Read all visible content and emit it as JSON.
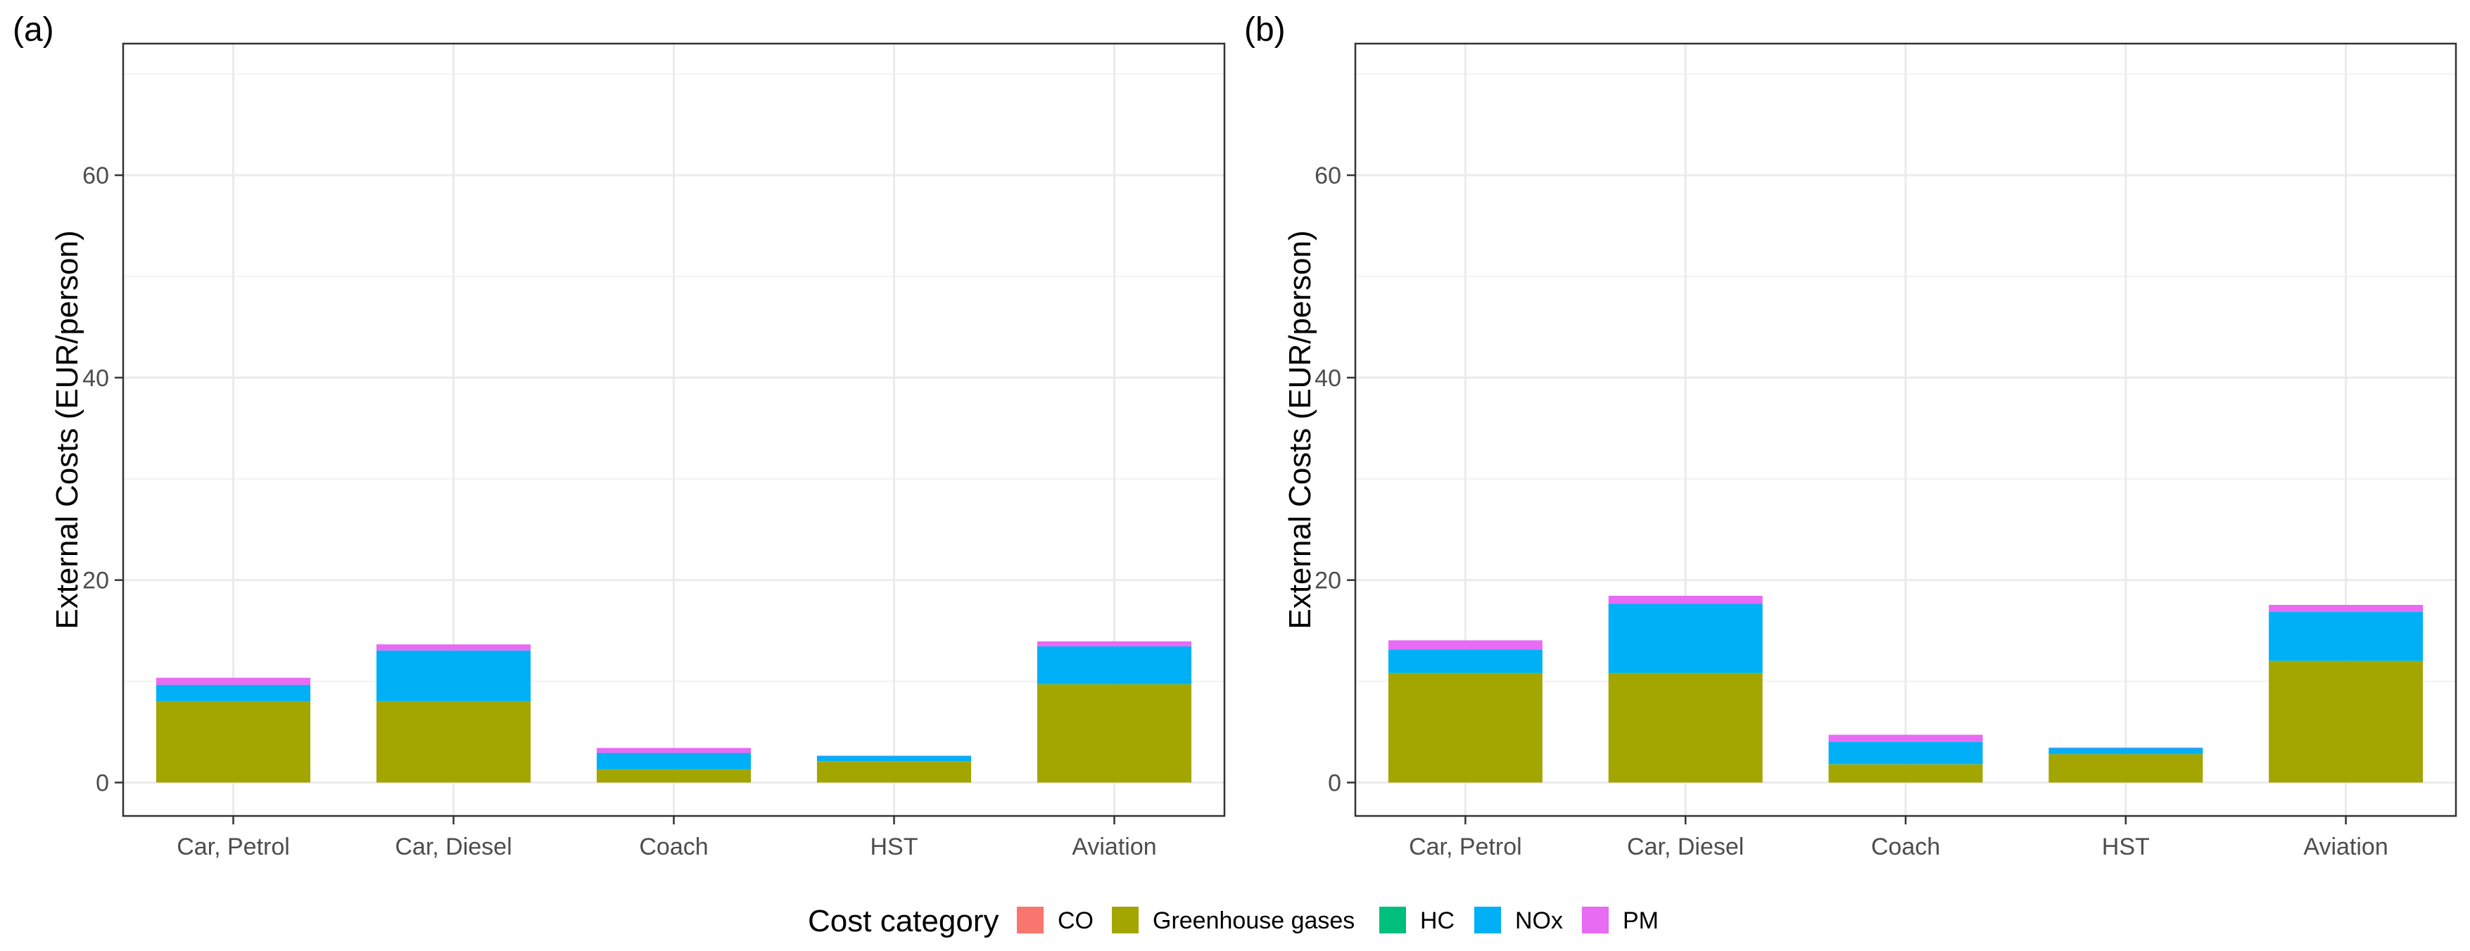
{
  "chart_data": [
    {
      "panel_label": "(a)",
      "type": "bar",
      "stacked": true,
      "categories": [
        "Car, Petrol",
        "Car, Diesel",
        "Coach",
        "HST",
        "Aviation"
      ],
      "series": [
        {
          "name": "CO",
          "color": "#F8766D",
          "values": [
            0.0,
            0.0,
            0.0,
            0.0,
            0.0
          ]
        },
        {
          "name": "Greenhouse gases",
          "color": "#A3A500",
          "values": [
            8.0,
            8.0,
            1.3,
            2.1,
            9.7
          ]
        },
        {
          "name": "HC",
          "color": "#00BF7D",
          "values": [
            0.05,
            0.05,
            0.02,
            0.01,
            0.05
          ]
        },
        {
          "name": "NOx",
          "color": "#00B0F6",
          "values": [
            1.6,
            5.0,
            1.6,
            0.5,
            3.7
          ]
        },
        {
          "name": "PM",
          "color": "#E76BF3",
          "values": [
            0.7,
            0.6,
            0.5,
            0.05,
            0.5
          ]
        }
      ],
      "xlabel": "",
      "ylabel": "External Costs (EUR/person)",
      "ylim": [
        -3.3,
        73
      ],
      "yticks": [
        0,
        20,
        40,
        60
      ]
    },
    {
      "panel_label": "(b)",
      "type": "bar",
      "stacked": true,
      "categories": [
        "Car, Petrol",
        "Car, Diesel",
        "Coach",
        "HST",
        "Aviation"
      ],
      "series": [
        {
          "name": "CO",
          "color": "#F8766D",
          "values": [
            0.0,
            0.0,
            0.0,
            0.0,
            0.0
          ]
        },
        {
          "name": "Greenhouse gases",
          "color": "#A3A500",
          "values": [
            10.8,
            10.8,
            1.8,
            2.8,
            12.0
          ]
        },
        {
          "name": "HC",
          "color": "#00BF7D",
          "values": [
            0.05,
            0.05,
            0.02,
            0.01,
            0.05
          ]
        },
        {
          "name": "NOx",
          "color": "#00B0F6",
          "values": [
            2.3,
            6.8,
            2.2,
            0.6,
            4.8
          ]
        },
        {
          "name": "PM",
          "color": "#E76BF3",
          "values": [
            0.9,
            0.8,
            0.7,
            0.05,
            0.7
          ]
        }
      ],
      "xlabel": "",
      "ylabel": "External Costs (EUR/person)",
      "ylim": [
        -3.3,
        73
      ],
      "yticks": [
        0,
        20,
        40,
        60
      ]
    }
  ],
  "legend": {
    "title": "Cost category",
    "position": "bottom",
    "items": [
      {
        "name": "CO",
        "color": "#F8766D"
      },
      {
        "name": "Greenhouse gases",
        "color": "#A3A500"
      },
      {
        "name": "HC",
        "color": "#00BF7D"
      },
      {
        "name": "NOx",
        "color": "#00B0F6"
      },
      {
        "name": "PM",
        "color": "#E76BF3"
      }
    ]
  }
}
